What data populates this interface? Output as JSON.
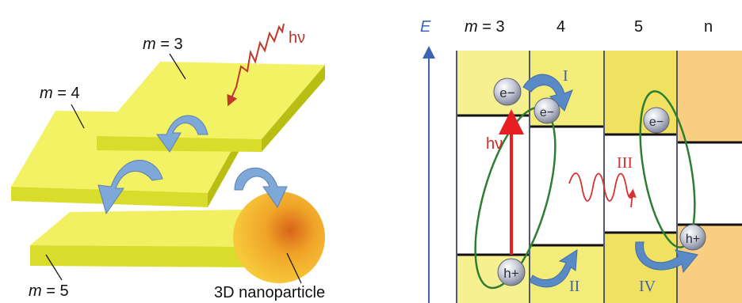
{
  "left_panel": {
    "labels": {
      "m3_var": "m",
      "m3_val": " = 3",
      "m4_var": "m",
      "m4_val": " = 4",
      "m5_var": "m",
      "m5_val": " = 5",
      "photon": "hν",
      "nanoparticle": "3D nanoparticle"
    },
    "colors": {
      "sheet_top": "#f2f062",
      "sheet_side": "#cdd51a",
      "arrow": "#7ea8d8",
      "photon": "#c0392b",
      "sphere_core": "#e0781a",
      "sphere_edge": "#f7c63a"
    }
  },
  "right_panel": {
    "axis_label": "E",
    "columns": [
      {
        "var": "m",
        "val": " = 3"
      },
      {
        "val": "4"
      },
      {
        "val": "5"
      },
      {
        "val": "n"
      }
    ],
    "carriers": {
      "electron": "e−",
      "hole": "h+"
    },
    "processes": [
      "I",
      "II",
      "III",
      "IV"
    ],
    "excitation": "hν",
    "colors": {
      "band_light": "#f6f091",
      "band_dark": "#f0e060",
      "bulk": "#f9ce80",
      "axis": "#3d63b8",
      "loop": "#2e7d32",
      "excitation": "#e62020",
      "emission": "#d93030",
      "transfer_arrow": "#5a8ac6"
    }
  }
}
